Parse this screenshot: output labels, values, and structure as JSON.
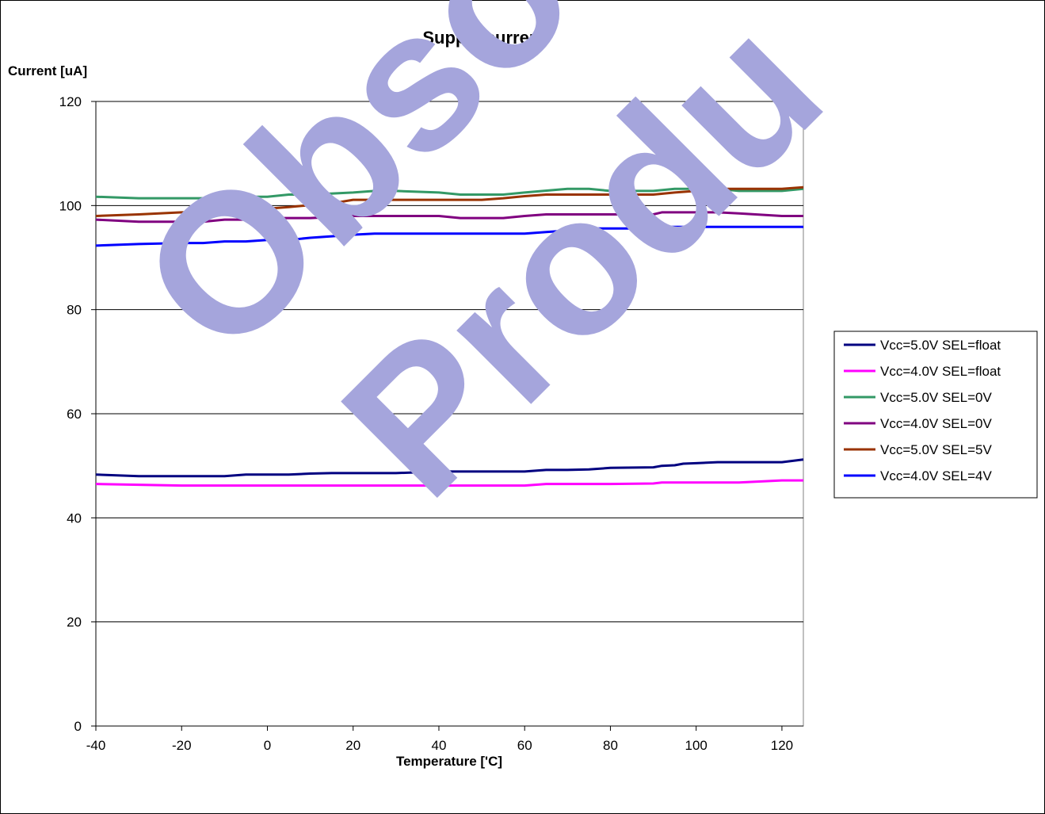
{
  "watermark": {
    "line1": "Obso",
    "line2": "Produ",
    "color": "#a5a5dc"
  },
  "chart_data": {
    "type": "line",
    "title": "Supply current",
    "ylabel": "Current [uA]",
    "xlabel": "Temperature ['C]",
    "xlim": [
      -40,
      125
    ],
    "ylim": [
      0,
      120
    ],
    "xticks": [
      -40,
      -20,
      0,
      20,
      40,
      60,
      80,
      100,
      120
    ],
    "yticks": [
      0,
      20,
      40,
      60,
      80,
      100,
      120
    ],
    "grid": "horizontal",
    "legend_position": "right",
    "series": [
      {
        "name": "Vcc=5.0V  SEL=float",
        "color": "#000080",
        "x": [
          -40,
          -30,
          -20,
          -10,
          -5,
          0,
          5,
          10,
          15,
          20,
          30,
          40,
          50,
          60,
          65,
          70,
          75,
          80,
          90,
          92,
          95,
          97,
          100,
          105,
          110,
          120,
          125
        ],
        "y": [
          48.3,
          48.0,
          48.0,
          48.0,
          48.3,
          48.3,
          48.3,
          48.5,
          48.6,
          48.6,
          48.6,
          48.9,
          48.9,
          48.9,
          49.2,
          49.2,
          49.3,
          49.6,
          49.7,
          50.0,
          50.1,
          50.4,
          50.5,
          50.7,
          50.7,
          50.7,
          51.2
        ]
      },
      {
        "name": "Vcc=4.0V  SEL=float",
        "color": "#ff00ff",
        "x": [
          -40,
          -20,
          0,
          20,
          40,
          60,
          65,
          80,
          90,
          92,
          110,
          120,
          125
        ],
        "y": [
          46.5,
          46.2,
          46.2,
          46.2,
          46.2,
          46.2,
          46.5,
          46.5,
          46.6,
          46.8,
          46.8,
          47.2,
          47.2
        ]
      },
      {
        "name": "Vcc=5.0V  SEL=0V",
        "color": "#339966",
        "x": [
          -40,
          -30,
          -20,
          -10,
          -5,
          0,
          5,
          10,
          20,
          25,
          30,
          40,
          45,
          50,
          55,
          60,
          70,
          75,
          80,
          90,
          95,
          100,
          105,
          110,
          120,
          125
        ],
        "y": [
          101.7,
          101.4,
          101.4,
          101.4,
          101.7,
          101.7,
          102.1,
          102.1,
          102.5,
          102.8,
          102.8,
          102.5,
          102.1,
          102.1,
          102.1,
          102.5,
          103.2,
          103.2,
          102.8,
          102.8,
          103.2,
          103.2,
          103.2,
          102.8,
          102.8,
          103.2
        ]
      },
      {
        "name": "Vcc=4.0V  SEL=0V",
        "color": "#800080",
        "x": [
          -40,
          -30,
          -20,
          -15,
          -10,
          -5,
          0,
          5,
          10,
          20,
          30,
          40,
          45,
          50,
          55,
          60,
          65,
          70,
          80,
          90,
          92,
          100,
          105,
          110,
          120,
          125
        ],
        "y": [
          97.3,
          96.9,
          96.9,
          96.9,
          97.3,
          97.3,
          97.6,
          97.6,
          97.6,
          98.0,
          98.0,
          98.0,
          97.6,
          97.6,
          97.6,
          98.0,
          98.3,
          98.3,
          98.3,
          98.3,
          98.7,
          98.7,
          98.7,
          98.5,
          98.0,
          98.0
        ]
      },
      {
        "name": "Vcc=5.0V  SEL=5V",
        "color": "#993300",
        "x": [
          -40,
          -30,
          -20,
          -10,
          -5,
          0,
          5,
          10,
          15,
          20,
          30,
          40,
          50,
          55,
          60,
          65,
          70,
          80,
          85,
          90,
          95,
          100,
          105,
          110,
          120,
          125
        ],
        "y": [
          98.0,
          98.3,
          98.7,
          98.7,
          99.0,
          99.4,
          99.7,
          100.1,
          100.4,
          101.1,
          101.1,
          101.1,
          101.1,
          101.4,
          101.8,
          102.1,
          102.1,
          102.1,
          102.1,
          102.1,
          102.5,
          102.8,
          103.2,
          103.2,
          103.2,
          103.5
        ]
      },
      {
        "name": "Vcc=4.0V  SEL=4V",
        "color": "#0000ff",
        "x": [
          -40,
          -30,
          -20,
          -15,
          -10,
          -5,
          0,
          5,
          10,
          15,
          20,
          25,
          30,
          40,
          50,
          60,
          65,
          70,
          75,
          80,
          90,
          92,
          100,
          110,
          120,
          125
        ],
        "y": [
          92.3,
          92.6,
          92.8,
          92.8,
          93.1,
          93.1,
          93.4,
          93.4,
          93.8,
          94.1,
          94.4,
          94.6,
          94.6,
          94.6,
          94.6,
          94.6,
          94.9,
          95.2,
          95.6,
          95.6,
          95.6,
          95.9,
          95.9,
          95.9,
          95.9,
          95.9
        ]
      }
    ]
  }
}
